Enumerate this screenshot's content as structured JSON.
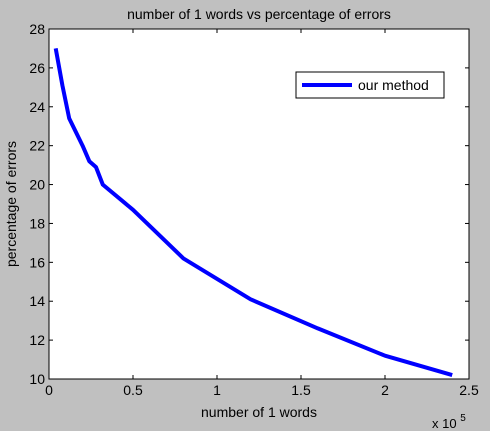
{
  "window": {
    "background_color": "#c0c0c0"
  },
  "chart_data": {
    "type": "line",
    "title": "number of 1 words vs percentage of errors",
    "xlabel": "number of 1 words",
    "ylabel": "percentage of errors",
    "x_exponent_label": {
      "base": "x 10",
      "exponent": "5"
    },
    "xlim": [
      0,
      2.5
    ],
    "ylim": [
      10,
      28
    ],
    "x_ticks": [
      0,
      0.5,
      1,
      1.5,
      2,
      2.5
    ],
    "x_tick_labels": [
      "0",
      "0.5",
      "1",
      "1.5",
      "2",
      "2.5"
    ],
    "y_ticks": [
      10,
      12,
      14,
      16,
      18,
      20,
      22,
      24,
      26,
      28
    ],
    "y_tick_labels": [
      "10",
      "12",
      "14",
      "16",
      "18",
      "20",
      "22",
      "24",
      "26",
      "28"
    ],
    "grid": false,
    "legend_position": "top-right",
    "series": [
      {
        "name": "our method",
        "color": "#0000ff",
        "x": [
          0.04,
          0.08,
          0.12,
          0.2,
          0.24,
          0.28,
          0.32,
          0.5,
          0.8,
          1.2,
          1.6,
          2.0,
          2.4
        ],
        "y": [
          27.0,
          25.1,
          23.4,
          22.0,
          21.2,
          20.9,
          20.0,
          18.7,
          16.2,
          14.1,
          12.6,
          11.2,
          10.2
        ]
      }
    ]
  }
}
